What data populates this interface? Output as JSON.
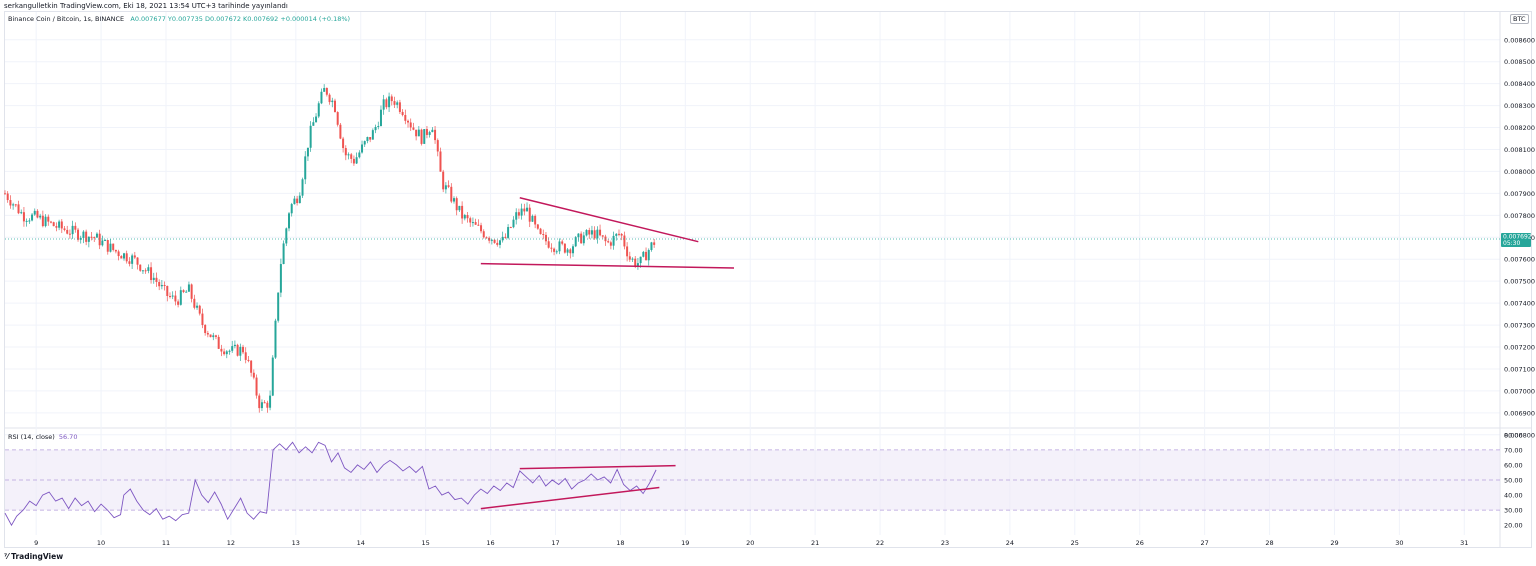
{
  "header": {
    "published": "serkangulletkin TradingView.com, Eki 18, 2021 13:54 UTC+3 tarihinde yayınlandı"
  },
  "legend": {
    "symbol": "Binance Coin / Bitcoin, 1s, BINANCE",
    "ohlc": "A0.007677  Y0.007735  D0.007672  K0.007692  +0.000014 (+0.18%)"
  },
  "currency_badge": "BTC",
  "price_label": {
    "value": "0.007692",
    "countdown": "05:30"
  },
  "rsi_legend": {
    "name": "RSI (14, close)",
    "value": "56.70"
  },
  "footer": {
    "brand": "TradingView"
  },
  "colors": {
    "up": "#26a69a",
    "down": "#ef5350",
    "rsi": "#7e57c2",
    "trendline": "#c2185b",
    "rsi_band": "#ede7f6"
  },
  "chart_data": [
    {
      "type": "candlestick",
      "title": "Binance Coin / Bitcoin, 1s, BINANCE",
      "y_ticks": [
        "0.008600",
        "0.008500",
        "0.008400",
        "0.008300",
        "0.008200",
        "0.008100",
        "0.008000",
        "0.007900",
        "0.007800",
        "0.007700",
        "0.007600",
        "0.007500",
        "0.007400",
        "0.007300",
        "0.007200",
        "0.007100",
        "0.007000",
        "0.006900",
        "0.006800"
      ],
      "ylim": [
        0.00679,
        0.00869
      ],
      "x_ticks": [
        "9",
        "10",
        "11",
        "12",
        "13",
        "14",
        "15",
        "16",
        "17",
        "18",
        "19",
        "20",
        "21",
        "22",
        "23",
        "24",
        "25",
        "26",
        "27",
        "28",
        "29",
        "30",
        "31"
      ],
      "xlim_days": [
        8.52,
        31.55
      ],
      "grid": true,
      "anchors": [
        [
          8.52,
          0.0079
        ],
        [
          8.8,
          0.0078
        ],
        [
          9.0,
          0.00779
        ],
        [
          9.3,
          0.00775
        ],
        [
          9.6,
          0.00772
        ],
        [
          9.9,
          0.0077
        ],
        [
          10.2,
          0.00764
        ],
        [
          10.5,
          0.0076
        ],
        [
          10.8,
          0.00752
        ],
        [
          11.0,
          0.00744
        ],
        [
          11.15,
          0.00741
        ],
        [
          11.35,
          0.00746
        ],
        [
          11.55,
          0.00731
        ],
        [
          11.8,
          0.00721
        ],
        [
          12.0,
          0.00718
        ],
        [
          12.2,
          0.00719
        ],
        [
          12.3,
          0.00709
        ],
        [
          12.45,
          0.00693
        ],
        [
          12.6,
          0.00695
        ],
        [
          12.75,
          0.00755
        ],
        [
          12.9,
          0.00783
        ],
        [
          13.05,
          0.0079
        ],
        [
          13.2,
          0.00815
        ],
        [
          13.35,
          0.0083
        ],
        [
          13.45,
          0.00838
        ],
        [
          13.6,
          0.0083
        ],
        [
          13.75,
          0.00808
        ],
        [
          13.9,
          0.00805
        ],
        [
          14.05,
          0.00812
        ],
        [
          14.2,
          0.00818
        ],
        [
          14.35,
          0.0083
        ],
        [
          14.5,
          0.00833
        ],
        [
          14.65,
          0.00828
        ],
        [
          14.8,
          0.0082
        ],
        [
          14.95,
          0.00815
        ],
        [
          15.1,
          0.00822
        ],
        [
          15.25,
          0.00795
        ],
        [
          15.4,
          0.00788
        ],
        [
          15.55,
          0.0078
        ],
        [
          15.7,
          0.00776
        ],
        [
          15.85,
          0.00773
        ],
        [
          16.0,
          0.0077
        ],
        [
          16.2,
          0.00768
        ],
        [
          16.4,
          0.0078
        ],
        [
          16.55,
          0.00783
        ],
        [
          16.75,
          0.0077
        ],
        [
          17.0,
          0.00766
        ],
        [
          17.2,
          0.00765
        ],
        [
          17.4,
          0.0077
        ],
        [
          17.6,
          0.00772
        ],
        [
          17.8,
          0.00767
        ],
        [
          18.0,
          0.00772
        ],
        [
          18.15,
          0.0076
        ],
        [
          18.3,
          0.00758
        ],
        [
          18.45,
          0.00765
        ],
        [
          18.55,
          0.00769
        ]
      ],
      "annotations": [
        {
          "type": "trendline",
          "from": [
            16.45,
            0.00788
          ],
          "to": [
            19.2,
            0.00768
          ]
        },
        {
          "type": "trendline",
          "from": [
            15.85,
            0.00758
          ],
          "to": [
            19.75,
            0.00756
          ]
        }
      ],
      "last_price": 0.007692
    },
    {
      "type": "line",
      "title": "RSI (14, close)",
      "y_ticks": [
        "80.00",
        "70.00",
        "60.00",
        "50.00",
        "40.00",
        "30.00",
        "20.00"
      ],
      "ylim": [
        13.5,
        82.5
      ],
      "bands": {
        "upper": 70,
        "middle": 50,
        "lower": 30
      },
      "last_value": 56.7,
      "points": [
        [
          8.52,
          28
        ],
        [
          8.62,
          20
        ],
        [
          8.7,
          26
        ],
        [
          8.8,
          30
        ],
        [
          8.9,
          36
        ],
        [
          9.0,
          33
        ],
        [
          9.1,
          40
        ],
        [
          9.2,
          42
        ],
        [
          9.3,
          36
        ],
        [
          9.4,
          38
        ],
        [
          9.5,
          31
        ],
        [
          9.6,
          38
        ],
        [
          9.7,
          33
        ],
        [
          9.8,
          36
        ],
        [
          9.9,
          29
        ],
        [
          10.0,
          34
        ],
        [
          10.1,
          30
        ],
        [
          10.2,
          25
        ],
        [
          10.3,
          27
        ],
        [
          10.35,
          40
        ],
        [
          10.45,
          44
        ],
        [
          10.55,
          36
        ],
        [
          10.65,
          30
        ],
        [
          10.75,
          27
        ],
        [
          10.85,
          31
        ],
        [
          10.95,
          24
        ],
        [
          11.05,
          26
        ],
        [
          11.15,
          23
        ],
        [
          11.25,
          27
        ],
        [
          11.35,
          28
        ],
        [
          11.45,
          50
        ],
        [
          11.55,
          40
        ],
        [
          11.65,
          35
        ],
        [
          11.75,
          42
        ],
        [
          11.85,
          34
        ],
        [
          11.95,
          24
        ],
        [
          12.05,
          31
        ],
        [
          12.15,
          38
        ],
        [
          12.25,
          28
        ],
        [
          12.35,
          24
        ],
        [
          12.45,
          29
        ],
        [
          12.55,
          28
        ],
        [
          12.65,
          70
        ],
        [
          12.75,
          74
        ],
        [
          12.85,
          70
        ],
        [
          12.95,
          75
        ],
        [
          13.05,
          68
        ],
        [
          13.15,
          72
        ],
        [
          13.25,
          68
        ],
        [
          13.35,
          75
        ],
        [
          13.45,
          73
        ],
        [
          13.55,
          62
        ],
        [
          13.65,
          68
        ],
        [
          13.75,
          58
        ],
        [
          13.85,
          55
        ],
        [
          13.95,
          60
        ],
        [
          14.05,
          57
        ],
        [
          14.15,
          62
        ],
        [
          14.25,
          55
        ],
        [
          14.35,
          60
        ],
        [
          14.45,
          63
        ],
        [
          14.55,
          60
        ],
        [
          14.65,
          56
        ],
        [
          14.75,
          59
        ],
        [
          14.85,
          55
        ],
        [
          14.95,
          59
        ],
        [
          15.05,
          44
        ],
        [
          15.15,
          46
        ],
        [
          15.25,
          40
        ],
        [
          15.35,
          42
        ],
        [
          15.45,
          37
        ],
        [
          15.55,
          38
        ],
        [
          15.65,
          34
        ],
        [
          15.75,
          40
        ],
        [
          15.85,
          44
        ],
        [
          15.95,
          41
        ],
        [
          16.05,
          46
        ],
        [
          16.15,
          43
        ],
        [
          16.25,
          48
        ],
        [
          16.35,
          45
        ],
        [
          16.45,
          56
        ],
        [
          16.55,
          52
        ],
        [
          16.65,
          48
        ],
        [
          16.75,
          53
        ],
        [
          16.85,
          46
        ],
        [
          16.95,
          50
        ],
        [
          17.05,
          47
        ],
        [
          17.15,
          51
        ],
        [
          17.25,
          44
        ],
        [
          17.35,
          48
        ],
        [
          17.45,
          50
        ],
        [
          17.55,
          54
        ],
        [
          17.65,
          50
        ],
        [
          17.75,
          52
        ],
        [
          17.85,
          48
        ],
        [
          17.95,
          57
        ],
        [
          18.05,
          47
        ],
        [
          18.15,
          43
        ],
        [
          18.25,
          46
        ],
        [
          18.35,
          41
        ],
        [
          18.45,
          48
        ],
        [
          18.55,
          56.7
        ]
      ],
      "annotations": [
        {
          "type": "trendline",
          "from": [
            16.45,
            57.5
          ],
          "to": [
            18.85,
            59.5
          ]
        },
        {
          "type": "trendline",
          "from": [
            15.85,
            31.0
          ],
          "to": [
            18.6,
            45.0
          ]
        }
      ]
    }
  ]
}
